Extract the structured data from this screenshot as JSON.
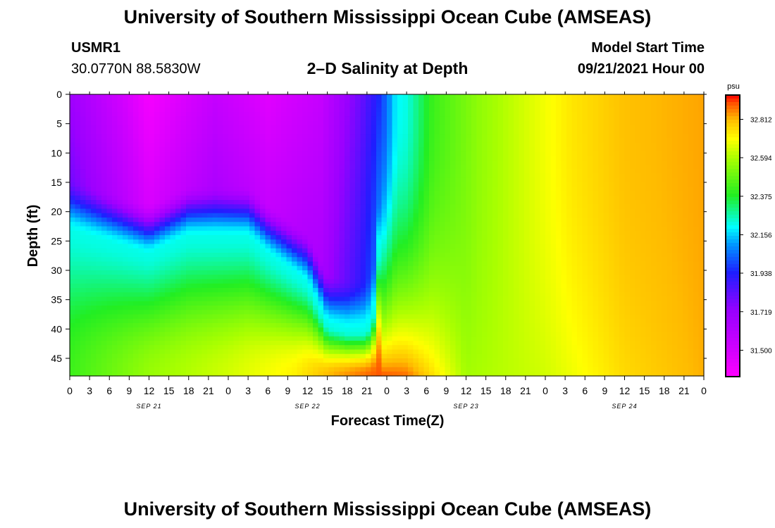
{
  "header": {
    "title_top": "University of Southern Mississippi Ocean Cube (AMSEAS)",
    "title_bottom": "University of Southern Mississippi Ocean Cube (AMSEAS)",
    "station": "USMR1",
    "coords": "30.0770N  88.5830W",
    "model_start_label": "Model Start Time",
    "model_start_value": "09/21/2021 Hour 00"
  },
  "chart_data": {
    "type": "heatmap",
    "title": "2–D Salinity at Depth",
    "xlabel": "Forecast Time(Z)",
    "ylabel": "Depth (ft)",
    "x_ticks": [
      "0",
      "3",
      "6",
      "9",
      "12",
      "15",
      "18",
      "21",
      "0",
      "3",
      "6",
      "9",
      "12",
      "15",
      "18",
      "21",
      "0",
      "3",
      "6",
      "9",
      "12",
      "15",
      "18",
      "21",
      "0",
      "3",
      "6",
      "9",
      "12",
      "15",
      "18",
      "21",
      "0"
    ],
    "x_range_hours": [
      0,
      96
    ],
    "day_labels": [
      {
        "label": "SEP 21",
        "hour": 12
      },
      {
        "label": "SEP 22",
        "hour": 36
      },
      {
        "label": "SEP 23",
        "hour": 60
      },
      {
        "label": "SEP 24",
        "hour": 84
      }
    ],
    "y_ticks": [
      "0",
      "5",
      "10",
      "15",
      "20",
      "25",
      "30",
      "35",
      "40",
      "45"
    ],
    "y_range_ft": [
      0,
      48
    ],
    "colorbar": {
      "unit": "psu",
      "min": 31.35,
      "max": 32.95,
      "tick_labels": [
        "32.812",
        "32.594",
        "32.375",
        "32.156",
        "31.938",
        "31.719",
        "31.500"
      ],
      "tick_values": [
        32.812,
        32.594,
        32.375,
        32.156,
        31.938,
        31.719,
        31.5
      ]
    },
    "colormap": [
      {
        "v": 31.35,
        "c": "#ff00ff"
      },
      {
        "v": 31.5,
        "c": "#d200ff"
      },
      {
        "v": 31.72,
        "c": "#9a00ff"
      },
      {
        "v": 31.94,
        "c": "#1e1eff"
      },
      {
        "v": 32.1,
        "c": "#0096ff"
      },
      {
        "v": 32.2,
        "c": "#00ffff"
      },
      {
        "v": 32.38,
        "c": "#22ee22"
      },
      {
        "v": 32.59,
        "c": "#aaff00"
      },
      {
        "v": 32.7,
        "c": "#ffff00"
      },
      {
        "v": 32.81,
        "c": "#ffbb00"
      },
      {
        "v": 32.9,
        "c": "#ff5500"
      },
      {
        "v": 32.95,
        "c": "#ff0000"
      }
    ],
    "fresh_layer_bottom_ft": [
      {
        "h": 0,
        "d": 19
      },
      {
        "h": 6,
        "d": 21
      },
      {
        "h": 12,
        "d": 23
      },
      {
        "h": 18,
        "d": 20
      },
      {
        "h": 27,
        "d": 20
      },
      {
        "h": 30,
        "d": 23
      },
      {
        "h": 36,
        "d": 28
      },
      {
        "h": 39,
        "d": 35
      },
      {
        "h": 42,
        "d": 36
      },
      {
        "h": 45,
        "d": 36
      },
      {
        "h": 46,
        "d": 33
      },
      {
        "h": 47,
        "d": 20
      },
      {
        "h": 47.5,
        "d": 0
      },
      {
        "h": 96,
        "d": 0
      }
    ],
    "surface_values": [
      {
        "h": 0,
        "v": 31.7
      },
      {
        "h": 8,
        "v": 31.5
      },
      {
        "h": 12,
        "v": 31.38
      },
      {
        "h": 22,
        "v": 31.55
      },
      {
        "h": 30,
        "v": 31.45
      },
      {
        "h": 38,
        "v": 31.55
      },
      {
        "h": 44,
        "v": 31.8
      },
      {
        "h": 47,
        "v": 31.96
      },
      {
        "h": 49.5,
        "v": 32.2
      },
      {
        "h": 51,
        "v": 32.22
      },
      {
        "h": 55,
        "v": 32.42
      },
      {
        "h": 62,
        "v": 32.55
      },
      {
        "h": 70,
        "v": 32.66
      },
      {
        "h": 76,
        "v": 32.74
      },
      {
        "h": 84,
        "v": 32.8
      },
      {
        "h": 96,
        "v": 32.83
      }
    ],
    "deep_values": [
      {
        "h": 0,
        "v": 32.42
      },
      {
        "h": 12,
        "v": 32.56
      },
      {
        "h": 24,
        "v": 32.64
      },
      {
        "h": 34,
        "v": 32.72
      },
      {
        "h": 40,
        "v": 32.82
      },
      {
        "h": 47,
        "v": 32.9
      },
      {
        "h": 51,
        "v": 32.88
      },
      {
        "h": 55,
        "v": 32.75
      },
      {
        "h": 60,
        "v": 32.58
      },
      {
        "h": 72,
        "v": 32.64
      },
      {
        "h": 84,
        "v": 32.76
      },
      {
        "h": 96,
        "v": 32.82
      }
    ],
    "grid": false
  }
}
